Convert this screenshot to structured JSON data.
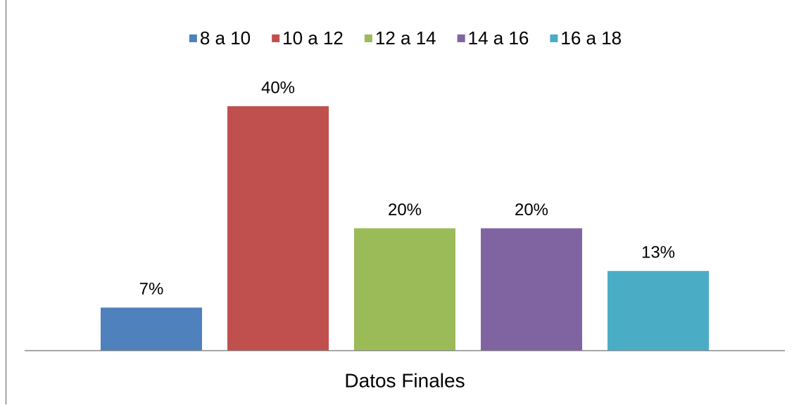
{
  "chart_data": {
    "type": "bar",
    "categories": [
      "Datos Finales"
    ],
    "legend": "top",
    "series": [
      {
        "name": "8 a 10",
        "color": "#4f81bd",
        "values": [
          7
        ],
        "value_labels": [
          "7%"
        ]
      },
      {
        "name": "10 a 12",
        "color": "#c0504d",
        "values": [
          40
        ],
        "value_labels": [
          "40%"
        ]
      },
      {
        "name": "12 a 14",
        "color": "#9bbb59",
        "values": [
          20
        ],
        "value_labels": [
          "20%"
        ]
      },
      {
        "name": "14 a 16",
        "color": "#8064a2",
        "values": [
          20
        ],
        "value_labels": [
          "20%"
        ]
      },
      {
        "name": "16 a 18",
        "color": "#4bacc6",
        "values": [
          13
        ],
        "value_labels": [
          "13%"
        ]
      }
    ]
  }
}
